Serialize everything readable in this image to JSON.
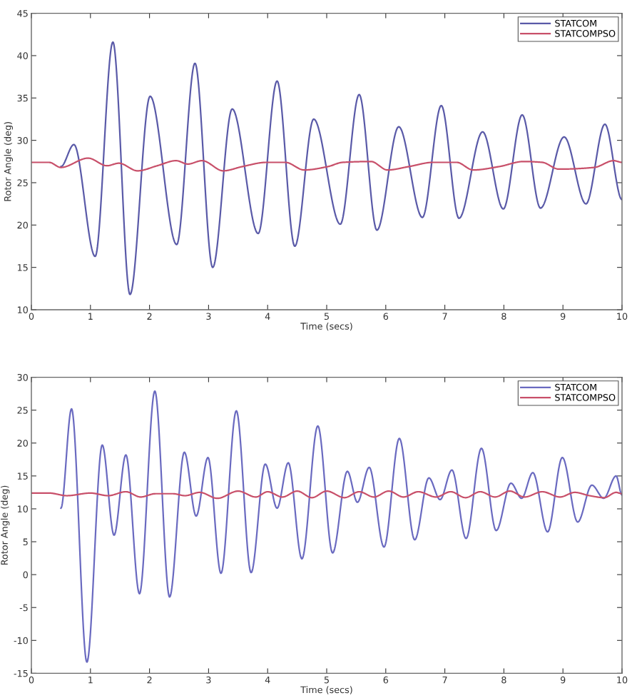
{
  "chart_data": [
    {
      "type": "line",
      "xlabel": "Time (secs)",
      "ylabel": "Rotor Angle (deg)",
      "xlim": [
        0,
        10
      ],
      "xticks": [
        0,
        1,
        2,
        3,
        4,
        5,
        6,
        7,
        8,
        9,
        10
      ],
      "ylim": [
        10,
        45
      ],
      "yticks": [
        10,
        15,
        20,
        25,
        30,
        35,
        40,
        45
      ],
      "legend": "top right",
      "series": [
        {
          "name": "STATCOM",
          "color": "#5a5aa8",
          "x": [
            0.5,
            0.72,
            1.08,
            1.38,
            1.67,
            2.01,
            2.46,
            2.77,
            3.07,
            3.4,
            3.84,
            4.16,
            4.46,
            4.78,
            5.23,
            5.55,
            5.85,
            6.22,
            6.62,
            6.94,
            7.24,
            7.64,
            7.99,
            8.31,
            8.62,
            9.02,
            9.39,
            9.71,
            10
          ],
          "values": [
            26.9,
            29.5,
            16.3,
            41.6,
            11.8,
            35.2,
            17.7,
            39.1,
            15.0,
            33.7,
            19.0,
            37.0,
            17.5,
            32.5,
            20.1,
            35.4,
            19.4,
            31.6,
            20.9,
            34.1,
            20.8,
            31.0,
            21.9,
            33.0,
            22.0,
            30.4,
            22.5,
            31.9,
            23.0
          ]
        },
        {
          "name": "STATCOMPSO",
          "color": "#c8506a",
          "x": [
            0,
            0.3,
            0.5,
            0.96,
            1.28,
            1.48,
            1.8,
            2.13,
            2.45,
            2.65,
            2.89,
            3.25,
            3.57,
            3.98,
            4.3,
            4.62,
            5.02,
            5.27,
            5.75,
            6.03,
            6.39,
            6.8,
            7.2,
            7.48,
            7.92,
            8.33,
            8.65,
            8.93,
            9.53,
            9.86,
            10
          ],
          "values": [
            27.4,
            27.4,
            26.8,
            27.9,
            27.0,
            27.3,
            26.4,
            27.0,
            27.6,
            27.2,
            27.6,
            26.4,
            26.9,
            27.4,
            27.4,
            26.5,
            26.9,
            27.4,
            27.5,
            26.5,
            26.9,
            27.4,
            27.4,
            26.5,
            26.9,
            27.5,
            27.4,
            26.6,
            26.8,
            27.6,
            27.4
          ]
        }
      ]
    },
    {
      "type": "line",
      "xlabel": "Time (secs)",
      "ylabel": "Rotor Angle (deg)",
      "xlim": [
        0,
        10
      ],
      "xticks": [
        0,
        1,
        2,
        3,
        4,
        5,
        6,
        7,
        8,
        9,
        10
      ],
      "ylim": [
        -15,
        30
      ],
      "yticks": [
        -15,
        -10,
        -5,
        0,
        5,
        10,
        15,
        20,
        25,
        30
      ],
      "legend": "top right",
      "series": [
        {
          "name": "STATCOM",
          "color": "#6a6ac0",
          "x": [
            0.5,
            0.68,
            0.94,
            1.2,
            1.4,
            1.6,
            1.83,
            2.09,
            2.34,
            2.59,
            2.79,
            2.99,
            3.21,
            3.47,
            3.72,
            3.96,
            4.16,
            4.35,
            4.58,
            4.85,
            5.1,
            5.35,
            5.52,
            5.72,
            5.97,
            6.23,
            6.49,
            6.73,
            6.92,
            7.12,
            7.36,
            7.62,
            7.87,
            8.12,
            8.3,
            8.49,
            8.74,
            8.99,
            9.25,
            9.49,
            9.69,
            9.9,
            10
          ],
          "values": [
            10.1,
            25.2,
            -13.3,
            19.7,
            6.0,
            18.2,
            -2.9,
            27.9,
            -3.4,
            18.6,
            8.9,
            17.8,
            0.2,
            24.9,
            0.3,
            16.8,
            10.1,
            17.0,
            2.4,
            22.6,
            3.3,
            15.7,
            11.0,
            16.3,
            4.2,
            20.7,
            5.3,
            14.7,
            11.4,
            15.9,
            5.5,
            19.2,
            6.7,
            13.9,
            11.6,
            15.5,
            6.5,
            17.8,
            8.0,
            13.6,
            11.6,
            15.0,
            12.1
          ]
        },
        {
          "name": "STATCOMPSO",
          "color": "#c8506a",
          "x": [
            0,
            0.3,
            0.6,
            1.0,
            1.3,
            1.6,
            1.85,
            2.1,
            2.4,
            2.6,
            2.85,
            3.15,
            3.5,
            3.8,
            4.0,
            4.25,
            4.5,
            4.75,
            5.0,
            5.3,
            5.55,
            5.8,
            6.05,
            6.3,
            6.55,
            6.85,
            7.1,
            7.35,
            7.6,
            7.85,
            8.1,
            8.35,
            8.65,
            8.95,
            9.2,
            9.45,
            9.7,
            9.9,
            10
          ],
          "values": [
            12.4,
            12.4,
            12.0,
            12.4,
            12.0,
            12.6,
            11.8,
            12.3,
            12.3,
            12.0,
            12.5,
            11.6,
            12.7,
            11.8,
            12.6,
            11.8,
            12.7,
            11.7,
            12.7,
            11.7,
            12.6,
            11.8,
            12.7,
            11.8,
            12.6,
            11.8,
            12.6,
            11.7,
            12.6,
            11.8,
            12.7,
            11.8,
            12.6,
            11.8,
            12.5,
            12.0,
            11.7,
            12.5,
            12.3
          ]
        }
      ]
    }
  ]
}
